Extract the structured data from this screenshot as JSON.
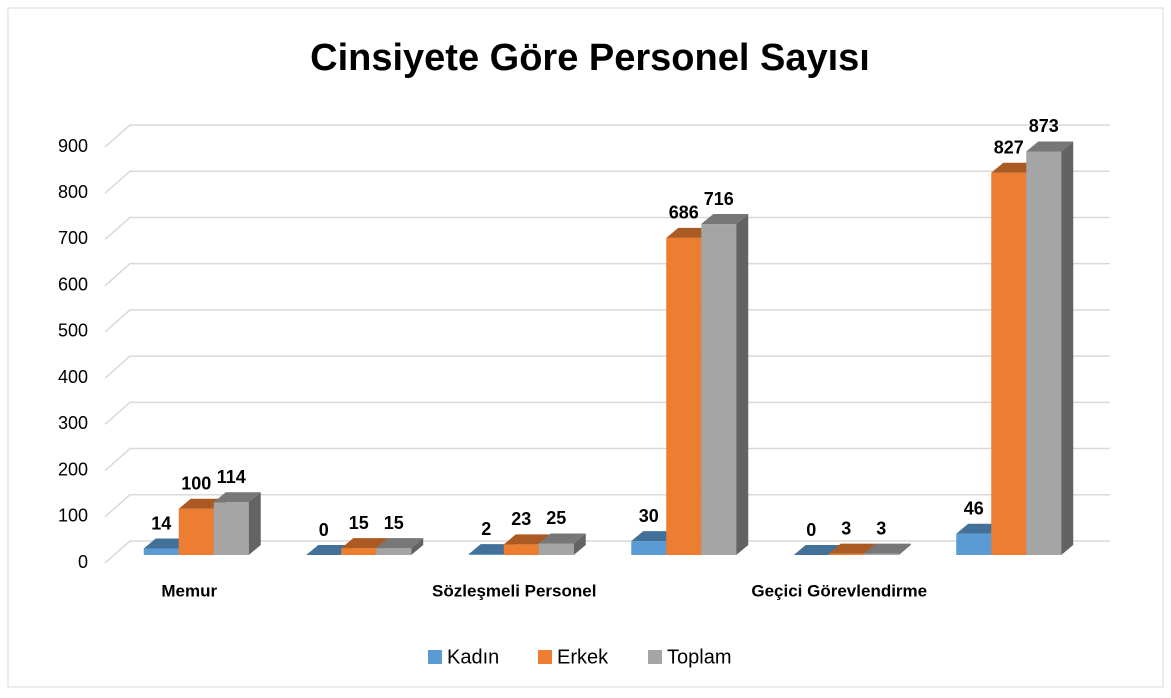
{
  "chart_data": {
    "type": "bar3d",
    "title": "Cinsiyete Göre Personel Sayısı",
    "categories": [
      "Memur",
      null,
      "Sözleşmeli Personel",
      null,
      "Geçici Görevlendirme",
      null
    ],
    "series": [
      {
        "name": "Kadın",
        "color": "#5b9bd5",
        "values": [
          14,
          0,
          2,
          30,
          0,
          46
        ]
      },
      {
        "name": "Erkek",
        "color": "#ed7d31",
        "values": [
          100,
          15,
          23,
          686,
          3,
          827
        ]
      },
      {
        "name": "Toplam",
        "color": "#a5a5a5",
        "values": [
          114,
          15,
          25,
          716,
          3,
          873
        ]
      }
    ],
    "ylim": [
      0,
      900
    ],
    "yticks": [
      0,
      100,
      200,
      300,
      400,
      500,
      600,
      700,
      800,
      900
    ],
    "grid": true,
    "legend": "bottom"
  }
}
